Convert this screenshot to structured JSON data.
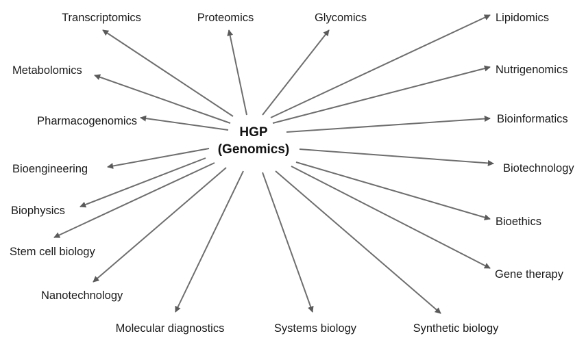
{
  "hub": {
    "line1": "HGP",
    "line2": "(Genomics)"
  },
  "colors": {
    "arrow": "#6e6e6e",
    "text": "#1a1a1a"
  },
  "nodes": [
    {
      "id": "transcriptomics",
      "label": "Transcriptomics"
    },
    {
      "id": "proteomics",
      "label": "Proteomics"
    },
    {
      "id": "glycomics",
      "label": "Glycomics"
    },
    {
      "id": "lipidomics",
      "label": "Lipidomics"
    },
    {
      "id": "metabolomics",
      "label": "Metabolomics"
    },
    {
      "id": "nutrigenomics",
      "label": "Nutrigenomics"
    },
    {
      "id": "pharmacogenomics",
      "label": "Pharmacogenomics"
    },
    {
      "id": "bioinformatics",
      "label": "Bioinformatics"
    },
    {
      "id": "bioengineering",
      "label": "Bioengineering"
    },
    {
      "id": "biotechnology",
      "label": "Biotechnology"
    },
    {
      "id": "biophysics",
      "label": "Biophysics"
    },
    {
      "id": "bioethics",
      "label": "Bioethics"
    },
    {
      "id": "stem-cell-biology",
      "label": "Stem cell biology"
    },
    {
      "id": "gene-therapy",
      "label": "Gene therapy"
    },
    {
      "id": "nanotechnology",
      "label": "Nanotechnology"
    },
    {
      "id": "molecular-diagnostics",
      "label": "Molecular diagnostics"
    },
    {
      "id": "systems-biology",
      "label": "Systems biology"
    },
    {
      "id": "synthetic-biology",
      "label": "Synthetic biology"
    }
  ]
}
